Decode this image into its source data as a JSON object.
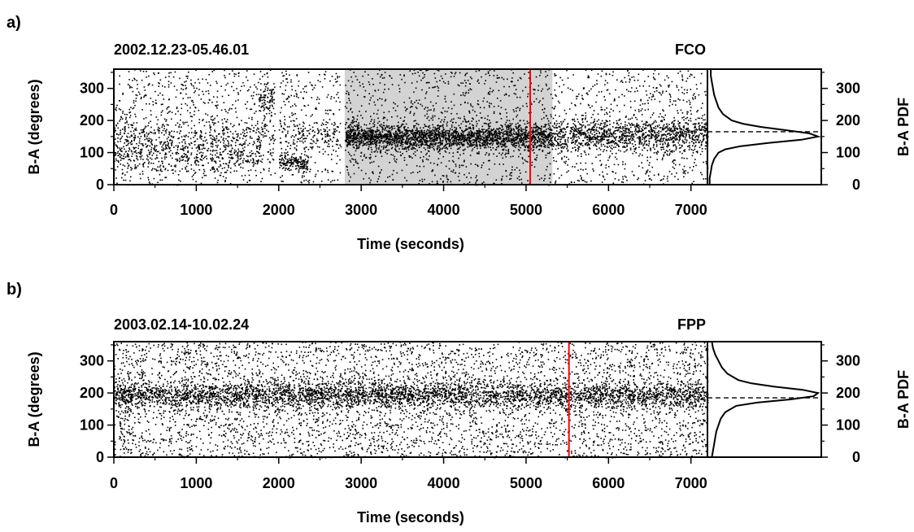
{
  "chart_data": [
    {
      "type": "scatter",
      "panel_label": "a)",
      "title": "2002.12.23-05.46.01",
      "station": "FCO",
      "xlabel": "Time (seconds)",
      "ylabel": "B-A (degrees)",
      "right_label": "B-A PDF",
      "xlim": [
        0,
        7200
      ],
      "ylim": [
        0,
        360
      ],
      "xticks": [
        0,
        1000,
        2000,
        3000,
        4000,
        5000,
        6000,
        7000
      ],
      "yticks": [
        0,
        100,
        200,
        300
      ],
      "highlight_window": [
        2800,
        5320
      ],
      "highlight_color": "#d3d3d3",
      "marker_time": 5050,
      "marker_color": "#ff0000",
      "pdf_reference_angle": 165,
      "pdf_peak_angle": 150,
      "pdf_curve": [
        [
          0,
          0.02
        ],
        [
          20,
          0.02
        ],
        [
          40,
          0.03
        ],
        [
          60,
          0.04
        ],
        [
          80,
          0.06
        ],
        [
          100,
          0.1
        ],
        [
          110,
          0.16
        ],
        [
          120,
          0.3
        ],
        [
          130,
          0.55
        ],
        [
          140,
          0.85
        ],
        [
          150,
          1.0
        ],
        [
          160,
          0.92
        ],
        [
          170,
          0.7
        ],
        [
          180,
          0.48
        ],
        [
          190,
          0.32
        ],
        [
          200,
          0.22
        ],
        [
          220,
          0.14
        ],
        [
          240,
          0.1
        ],
        [
          260,
          0.08
        ],
        [
          280,
          0.06
        ],
        [
          300,
          0.05
        ],
        [
          320,
          0.04
        ],
        [
          340,
          0.03
        ],
        [
          360,
          0.03
        ]
      ],
      "point_clusters": [
        {
          "t": [
            0,
            7200
          ],
          "center": 150,
          "spread": 30,
          "count": 1400
        },
        {
          "t": [
            0,
            1800
          ],
          "center": 90,
          "spread": 25,
          "count": 350
        },
        {
          "t": [
            2000,
            2350
          ],
          "center": 70,
          "spread": 12,
          "count": 160
        },
        {
          "t": [
            1750,
            1950
          ],
          "center": 270,
          "spread": 20,
          "count": 80
        },
        {
          "t": [
            2800,
            5320
          ],
          "center": 150,
          "spread": 18,
          "count": 1800
        },
        {
          "t": [
            5320,
            7200
          ],
          "center": 160,
          "spread": 22,
          "count": 700
        }
      ],
      "uniform_background": {
        "t": [
          0,
          7200
        ],
        "count": 2600
      },
      "gaps": [
        [
          1950,
          2000
        ],
        [
          2750,
          2800
        ]
      ]
    },
    {
      "type": "scatter",
      "panel_label": "b)",
      "title": "2003.02.14-10.02.24",
      "station": "FPP",
      "xlabel": "Time (seconds)",
      "ylabel": "B-A (degrees)",
      "right_label": "B-A PDF",
      "xlim": [
        0,
        7200
      ],
      "ylim": [
        0,
        360
      ],
      "xticks": [
        0,
        1000,
        2000,
        3000,
        4000,
        5000,
        6000,
        7000
      ],
      "yticks": [
        0,
        100,
        200,
        300
      ],
      "marker_time": 5520,
      "marker_color": "#ff0000",
      "pdf_reference_angle": 185,
      "pdf_peak_angle": 195,
      "pdf_curve": [
        [
          0,
          0.04
        ],
        [
          20,
          0.05
        ],
        [
          40,
          0.06
        ],
        [
          60,
          0.07
        ],
        [
          80,
          0.08
        ],
        [
          100,
          0.1
        ],
        [
          120,
          0.12
        ],
        [
          140,
          0.16
        ],
        [
          160,
          0.26
        ],
        [
          170,
          0.45
        ],
        [
          180,
          0.75
        ],
        [
          190,
          0.96
        ],
        [
          200,
          1.0
        ],
        [
          210,
          0.86
        ],
        [
          220,
          0.6
        ],
        [
          230,
          0.4
        ],
        [
          240,
          0.28
        ],
        [
          260,
          0.18
        ],
        [
          280,
          0.13
        ],
        [
          300,
          0.1
        ],
        [
          320,
          0.07
        ],
        [
          340,
          0.05
        ],
        [
          360,
          0.04
        ]
      ],
      "point_clusters": [
        {
          "t": [
            0,
            7200
          ],
          "center": 195,
          "spread": 20,
          "count": 3600
        }
      ],
      "uniform_background": {
        "t": [
          0,
          7200
        ],
        "count": 4200
      },
      "gaps": []
    }
  ]
}
